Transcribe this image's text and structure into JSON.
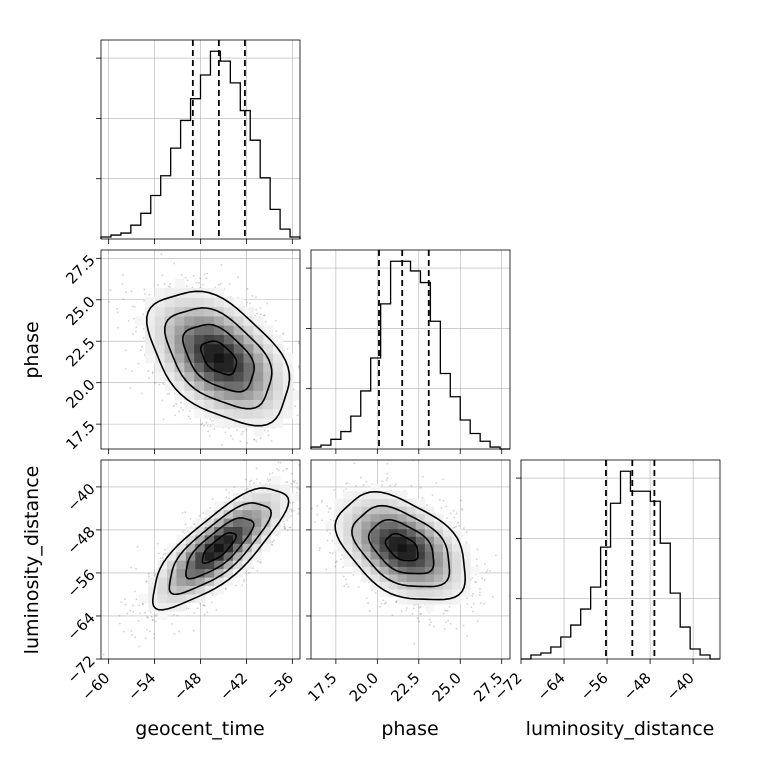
{
  "chart_data": {
    "type": "corner",
    "parameters": [
      "geocent_time",
      "phase",
      "luminosity_distance"
    ],
    "axis_labels": {
      "x": [
        "geocent_time",
        "phase",
        "luminosity_distance"
      ],
      "y": [
        "",
        "phase",
        "luminosity_distance"
      ]
    },
    "ranges": {
      "geocent_time": [
        -61,
        -35
      ],
      "phase": [
        16.0,
        28.0
      ],
      "luminosity_distance": [
        -72,
        -35
      ]
    },
    "ticks": {
      "geocent_time": [
        -60,
        -54,
        -48,
        -42,
        -36
      ],
      "phase": [
        17.5,
        20.0,
        22.5,
        25.0,
        27.5
      ],
      "luminosity_distance": [
        -72,
        -64,
        -56,
        -48,
        -40
      ]
    },
    "tick_labels": {
      "geocent_time": [
        "−60",
        "−54",
        "−48",
        "−42",
        "−36"
      ],
      "phase": [
        "17.5",
        "20.0",
        "22.5",
        "25.0",
        "27.5"
      ],
      "luminosity_distance": [
        "−72",
        "−64",
        "−56",
        "−48",
        "−40"
      ]
    },
    "quantiles": {
      "geocent_time": [
        -49.0,
        -45.6,
        -42.2
      ],
      "phase": [
        20.1,
        21.5,
        23.1
      ],
      "luminosity_distance": [
        -56.2,
        -51.3,
        -47.2
      ]
    },
    "histograms_1d": {
      "geocent_time": {
        "bin_edges": [
          -61.0,
          -59.7,
          -58.4,
          -57.1,
          -55.8,
          -54.5,
          -53.2,
          -51.9,
          -50.6,
          -49.3,
          -48.0,
          -46.7,
          -45.4,
          -44.1,
          -42.8,
          -41.5,
          -40.2,
          -38.9,
          -37.6,
          -36.3,
          -35.0
        ],
        "counts": [
          1,
          2,
          3,
          7,
          13,
          22,
          32,
          46,
          60,
          71,
          83,
          95,
          90,
          79,
          65,
          50,
          31,
          15,
          5,
          1
        ]
      },
      "phase": {
        "bin_edges": [
          16.0,
          16.6,
          17.2,
          17.8,
          18.4,
          19.0,
          19.6,
          20.2,
          20.8,
          21.4,
          22.0,
          22.6,
          23.2,
          23.8,
          24.4,
          25.0,
          25.6,
          26.2,
          26.8,
          27.4,
          28.0
        ],
        "counts": [
          1,
          2,
          5,
          9,
          17,
          30,
          47,
          75,
          97,
          97,
          92,
          86,
          66,
          39,
          27,
          15,
          8,
          4,
          1,
          0
        ]
      },
      "luminosity_distance": {
        "bin_edges": [
          -72.0,
          -70.15,
          -68.3,
          -66.45,
          -64.6,
          -62.75,
          -60.9,
          -59.05,
          -57.2,
          -55.35,
          -53.5,
          -51.65,
          -49.8,
          -47.95,
          -46.1,
          -44.25,
          -42.4,
          -40.55,
          -38.7,
          -36.85,
          -35.0
        ],
        "counts": [
          0,
          2,
          3,
          6,
          11,
          17,
          25,
          36,
          56,
          78,
          94,
          84,
          84,
          79,
          58,
          33,
          16,
          5,
          2,
          0
        ]
      }
    },
    "contours_2d": {
      "geocent_time_vs_phase": {
        "means": [
          -45.6,
          21.5
        ],
        "std": [
          4.6,
          2.0
        ],
        "rho": -0.45
      },
      "geocent_time_vs_luminosity_distance": {
        "means": [
          -45.6,
          -51.3
        ],
        "std": [
          4.4,
          5.6
        ],
        "rho": 0.78
      },
      "phase_vs_luminosity_distance": {
        "means": [
          21.5,
          -51.3
        ],
        "std": [
          1.95,
          5.0
        ],
        "rho": -0.42
      }
    },
    "grid": true,
    "colormap": "greys",
    "colors": {
      "line": "#000000",
      "grid": "#b0b0b0",
      "points": "#7a7a7a"
    }
  }
}
